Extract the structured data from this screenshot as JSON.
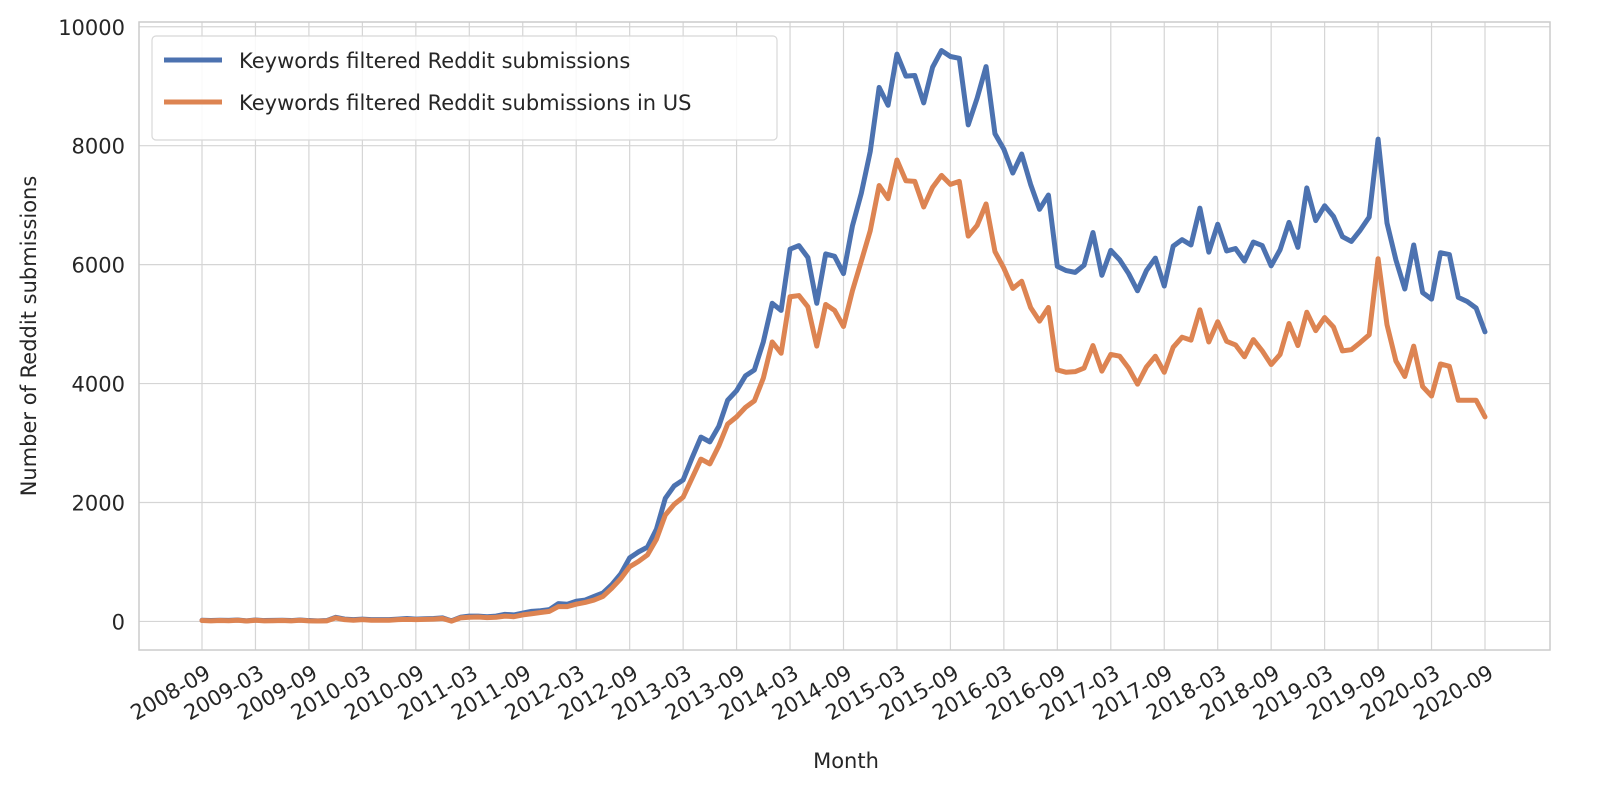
{
  "chart_data": {
    "type": "line",
    "xlabel": "Month",
    "ylabel": "Number of Reddit submissions",
    "categories": [
      "2008-09",
      null,
      null,
      null,
      null,
      null,
      "2009-03",
      null,
      null,
      null,
      null,
      null,
      "2009-09",
      null,
      null,
      null,
      null,
      null,
      "2010-03",
      null,
      null,
      null,
      null,
      null,
      "2010-09",
      null,
      null,
      null,
      null,
      null,
      "2011-03",
      null,
      null,
      null,
      null,
      null,
      "2011-09",
      null,
      null,
      null,
      null,
      null,
      "2012-03",
      null,
      null,
      null,
      null,
      null,
      "2012-09",
      null,
      null,
      null,
      null,
      null,
      "2013-03",
      null,
      null,
      null,
      null,
      null,
      "2013-09",
      null,
      null,
      null,
      null,
      null,
      "2014-03",
      null,
      null,
      null,
      null,
      null,
      "2014-09",
      null,
      null,
      null,
      null,
      null,
      "2015-03",
      null,
      null,
      null,
      null,
      null,
      "2015-09",
      null,
      null,
      null,
      null,
      null,
      "2016-03",
      null,
      null,
      null,
      null,
      null,
      "2016-09",
      null,
      null,
      null,
      null,
      null,
      "2017-03",
      null,
      null,
      null,
      null,
      null,
      "2017-09",
      null,
      null,
      null,
      null,
      null,
      "2018-03",
      null,
      null,
      null,
      null,
      null,
      "2018-09",
      null,
      null,
      null,
      null,
      null,
      "2019-03",
      null,
      null,
      null,
      null,
      null,
      "2019-09",
      null,
      null,
      null,
      null,
      null,
      "2020-03",
      null,
      null,
      null,
      null,
      null,
      "2020-09"
    ],
    "series": [
      {
        "name": "Keywords filtered Reddit submissions",
        "color": "#4c72b0",
        "values": [
          20,
          15,
          20,
          18,
          25,
          10,
          25,
          15,
          18,
          20,
          15,
          25,
          15,
          10,
          15,
          70,
          40,
          30,
          40,
          30,
          30,
          30,
          40,
          50,
          40,
          45,
          50,
          60,
          10,
          70,
          90,
          90,
          80,
          90,
          120,
          110,
          140,
          170,
          180,
          200,
          300,
          290,
          340,
          360,
          420,
          480,
          620,
          800,
          1070,
          1170,
          1250,
          1550,
          2070,
          2280,
          2380,
          2750,
          3100,
          3020,
          3280,
          3720,
          3880,
          4130,
          4230,
          4700,
          5350,
          5230,
          6260,
          6320,
          6120,
          5350,
          6180,
          6140,
          5850,
          6650,
          7200,
          7900,
          8980,
          8680,
          9540,
          9170,
          9180,
          8720,
          9320,
          9600,
          9500,
          9470,
          8350,
          8800,
          9330,
          8200,
          7940,
          7540,
          7860,
          7350,
          6930,
          7170,
          5970,
          5900,
          5870,
          5990,
          6540,
          5820,
          6240,
          6080,
          5850,
          5560,
          5900,
          6110,
          5640,
          6310,
          6420,
          6330,
          6950,
          6210,
          6680,
          6230,
          6270,
          6060,
          6380,
          6320,
          5980,
          6250,
          6710,
          6290,
          7290,
          6740,
          6990,
          6810,
          6470,
          6390,
          6580,
          6800,
          8110,
          6700,
          6080,
          5590,
          6330,
          5530,
          5420,
          6200,
          6170,
          5450,
          5380,
          5270,
          4870
        ]
      },
      {
        "name": "Keywords filtered Reddit submissions in US",
        "color": "#dd8452",
        "values": [
          15,
          10,
          15,
          12,
          20,
          8,
          20,
          10,
          12,
          15,
          10,
          20,
          10,
          8,
          10,
          60,
          30,
          20,
          30,
          20,
          20,
          20,
          30,
          35,
          30,
          35,
          40,
          50,
          5,
          60,
          70,
          75,
          65,
          70,
          90,
          80,
          110,
          130,
          150,
          170,
          250,
          250,
          290,
          320,
          360,
          420,
          560,
          720,
          920,
          1010,
          1120,
          1380,
          1790,
          1970,
          2090,
          2410,
          2730,
          2650,
          2950,
          3320,
          3440,
          3600,
          3710,
          4090,
          4700,
          4510,
          5460,
          5480,
          5290,
          4630,
          5330,
          5230,
          4960,
          5560,
          6060,
          6570,
          7330,
          7110,
          7760,
          7410,
          7400,
          6970,
          7300,
          7500,
          7350,
          7400,
          6480,
          6660,
          7020,
          6220,
          5940,
          5600,
          5720,
          5280,
          5050,
          5280,
          4230,
          4190,
          4200,
          4260,
          4640,
          4210,
          4490,
          4460,
          4260,
          3990,
          4280,
          4460,
          4190,
          4610,
          4780,
          4730,
          5240,
          4700,
          5040,
          4710,
          4650,
          4450,
          4740,
          4550,
          4320,
          4490,
          5010,
          4640,
          5200,
          4890,
          5110,
          4950,
          4550,
          4570,
          4690,
          4820,
          6100,
          4990,
          4380,
          4120,
          4630,
          3950,
          3790,
          4330,
          4290,
          3720,
          3720,
          3720,
          3440
        ]
      }
    ],
    "ylim": [
      -480,
      10080
    ],
    "yticks": [
      0,
      2000,
      4000,
      6000,
      8000,
      10000
    ],
    "grid": true,
    "legend": "upper left"
  }
}
